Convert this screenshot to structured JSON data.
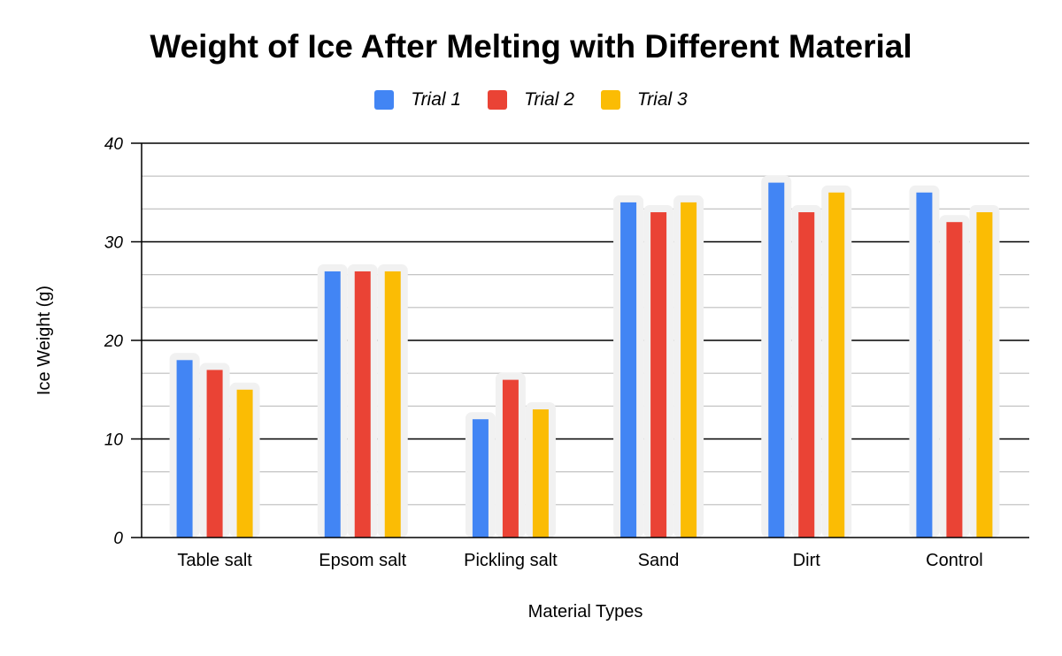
{
  "chart_data": {
    "type": "bar",
    "title": "Weight of Ice After Melting with Different Material",
    "xlabel": "Material Types",
    "ylabel": "Ice Weight (g)",
    "categories": [
      "Table salt",
      "Epsom salt",
      "Pickling salt",
      "Sand",
      "Dirt",
      "Control"
    ],
    "series": [
      {
        "name": "Trial 1",
        "color": "#4285F4",
        "values": [
          18,
          27,
          12,
          34,
          36,
          35
        ]
      },
      {
        "name": "Trial 2",
        "color": "#EA4335",
        "values": [
          17,
          27,
          16,
          33,
          33,
          32
        ]
      },
      {
        "name": "Trial 3",
        "color": "#FBBC04",
        "values": [
          15,
          27,
          13,
          34,
          35,
          33
        ]
      }
    ],
    "ylim": [
      0,
      40
    ],
    "yticks": [
      "0",
      "10",
      "20",
      "30",
      "40"
    ],
    "grid": true,
    "legend_position": "top"
  }
}
